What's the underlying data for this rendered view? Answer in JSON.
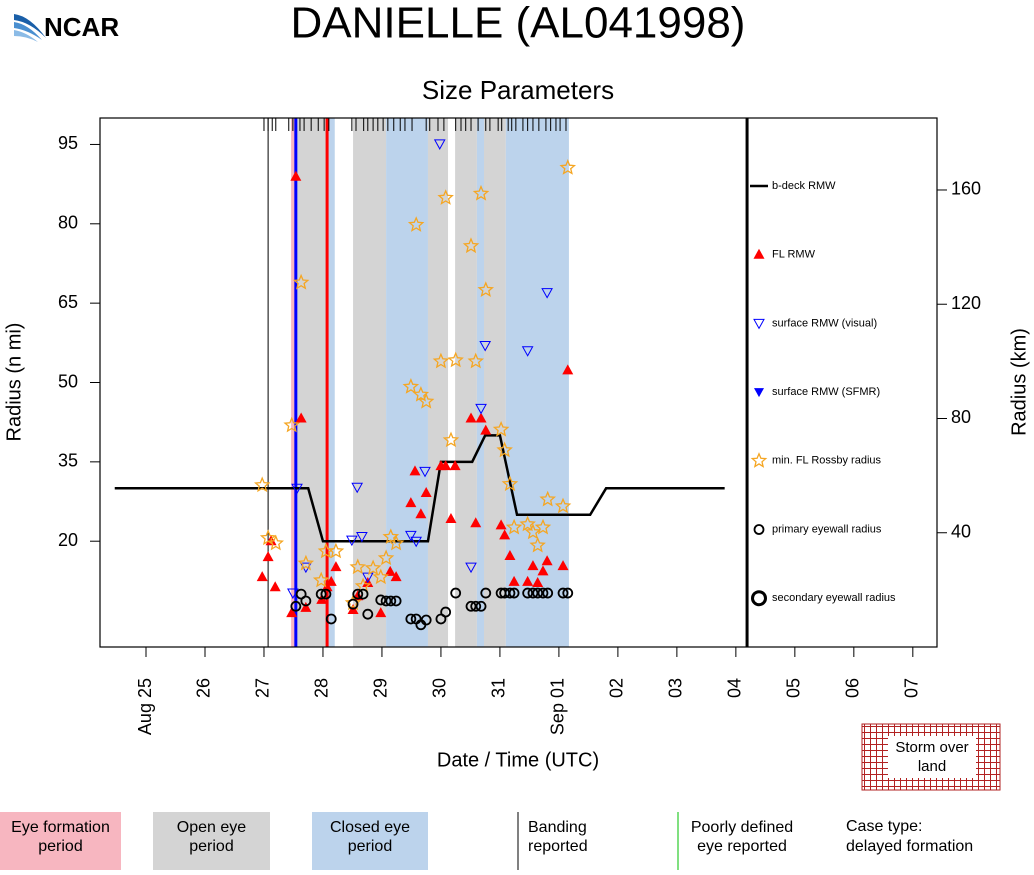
{
  "chart_data": {
    "type": "scatter",
    "logo": "NCAR",
    "title": "DANIELLE (AL041998)",
    "subtitle": "Size Parameters",
    "xlabel": "Date / Time (UTC)",
    "ylabel": "Radius (n mi)",
    "y2label": "Radius (km)",
    "xlim": [
      -0.78,
      13.41
    ],
    "xticks": [
      {
        "value": 0,
        "label": "Aug 25"
      },
      {
        "value": 1,
        "label": "26"
      },
      {
        "value": 2,
        "label": "27"
      },
      {
        "value": 3,
        "label": "28"
      },
      {
        "value": 4,
        "label": "29"
      },
      {
        "value": 5,
        "label": "30"
      },
      {
        "value": 6,
        "label": "31"
      },
      {
        "value": 7,
        "label": "Sep 01"
      },
      {
        "value": 8,
        "label": "02"
      },
      {
        "value": 9,
        "label": "03"
      },
      {
        "value": 10,
        "label": "04"
      },
      {
        "value": 11,
        "label": "05"
      },
      {
        "value": 12,
        "label": "06"
      },
      {
        "value": 13,
        "label": "07"
      }
    ],
    "ylim": [
      0,
      100
    ],
    "yticks": [
      20,
      35,
      50,
      65,
      80,
      95
    ],
    "y2lim": [
      0,
      185.2
    ],
    "y2ticks": [
      40,
      80,
      120,
      160
    ],
    "divider": 10.19,
    "fix_times": [
      2.0,
      2.07,
      2.14,
      2.2,
      2.42,
      2.49,
      2.61,
      2.68,
      2.8,
      2.92,
      3.02,
      3.1,
      3.49,
      3.56,
      3.69,
      3.76,
      3.85,
      3.93,
      4.02,
      4.1,
      4.2,
      4.31,
      4.39,
      4.51,
      4.75,
      4.81,
      4.95,
      5.05,
      5.25,
      5.34,
      5.42,
      5.51,
      5.63,
      5.76,
      5.83,
      5.97,
      6.03,
      6.14,
      6.2,
      6.27,
      6.39,
      6.47,
      6.56,
      6.66,
      6.78,
      6.86,
      6.95,
      7.02,
      7.12
    ],
    "shading": [
      {
        "label": [
          "Eye formation",
          "period"
        ],
        "color": "#f7b6c0",
        "spans": [
          [
            2.46,
            2.56
          ]
        ]
      },
      {
        "label": [
          "Open eye",
          "period"
        ],
        "color": "#d4d4d4",
        "spans": [
          [
            2.56,
            3.08
          ],
          [
            3.51,
            4.07
          ],
          [
            4.78,
            5.12
          ],
          [
            5.24,
            5.61
          ],
          [
            5.73,
            6.1
          ]
        ]
      },
      {
        "label": [
          "Closed eye",
          "period"
        ],
        "color": "#bcd3ec",
        "spans": [
          [
            3.08,
            3.2
          ],
          [
            4.07,
            4.78
          ],
          [
            5.61,
            5.73
          ],
          [
            6.1,
            7.17
          ]
        ]
      }
    ],
    "banding": {
      "label": [
        "Banding",
        "reported"
      ],
      "color": "#000000",
      "x": [
        2.07
      ]
    },
    "poorly_defined": {
      "label": [
        "Poorly defined",
        "eye reported"
      ],
      "color": "#00c000",
      "x": []
    },
    "case_type": [
      "Case type:",
      "delayed formation"
    ],
    "land_label": [
      "Storm over",
      "land"
    ],
    "vlines": [
      {
        "x": 2.54,
        "color": "#0000ff"
      },
      {
        "x": 3.07,
        "color": "#ff0000"
      }
    ],
    "series": [
      {
        "name": "b-deck RMW",
        "marker": "line",
        "color": "#000000",
        "x": [
          -0.53,
          2.75,
          3.0,
          4.78,
          5.0,
          5.53,
          5.75,
          6.0,
          6.29,
          7.53,
          7.8,
          9.81
        ],
        "values": [
          30,
          30,
          20,
          20,
          35,
          35,
          40,
          40,
          25,
          25,
          30,
          30
        ]
      },
      {
        "name": "FL RMW",
        "marker": "triangle-up",
        "color": "#ff0000",
        "x": [
          1.97,
          2.07,
          2.12,
          2.19,
          2.47,
          2.54,
          2.63,
          2.71,
          2.98,
          3.07,
          3.14,
          3.22,
          3.51,
          3.59,
          3.76,
          3.98,
          4.14,
          4.24,
          4.49,
          4.56,
          4.66,
          4.75,
          5.0,
          5.08,
          5.17,
          5.24,
          5.51,
          5.59,
          5.68,
          5.76,
          6.02,
          6.08,
          6.17,
          6.24,
          6.47,
          6.56,
          6.64,
          6.73,
          6.8,
          7.07,
          7.15
        ],
        "values": [
          13.2,
          17,
          20,
          11.3,
          6.4,
          88.9,
          43.2,
          7.4,
          8.9,
          11.3,
          12.3,
          15.1,
          7,
          9.6,
          12.1,
          6.4,
          14.2,
          13.2,
          27.2,
          33.2,
          25.1,
          29.1,
          34.2,
          34.2,
          24.2,
          34.2,
          43.2,
          23.4,
          43.2,
          40.9,
          23,
          21.1,
          17.2,
          12.3,
          12.3,
          15.3,
          12.1,
          14.3,
          16.2,
          15.3,
          52.3
        ]
      },
      {
        "name": "surface RMW (visual)",
        "marker": "triangle-down-open",
        "color": "#0000ff",
        "x": [
          2.49,
          2.56,
          2.71,
          3.49,
          3.58,
          3.66,
          3.76,
          4.49,
          4.58,
          4.73,
          4.98,
          5.51,
          5.68,
          5.75,
          6.47,
          6.8
        ],
        "values": [
          10.2,
          30,
          15.1,
          20.2,
          30.2,
          20.9,
          13.2,
          21.1,
          20,
          33.2,
          95.1,
          15.1,
          45.1,
          57,
          56,
          67
        ]
      },
      {
        "name": "surface RMW (SFMR)",
        "marker": "triangle-down",
        "color": "#0000ff",
        "x": [],
        "values": []
      },
      {
        "name": "min. FL Rossby radius",
        "marker": "star-open",
        "color": "#f5a623",
        "x": [
          1.97,
          2.07,
          2.2,
          2.47,
          2.63,
          2.71,
          2.97,
          3.05,
          3.22,
          3.51,
          3.59,
          3.68,
          3.85,
          3.98,
          4.07,
          4.15,
          4.24,
          4.49,
          4.58,
          4.66,
          4.75,
          5.0,
          5.08,
          5.17,
          5.25,
          5.51,
          5.59,
          5.68,
          5.76,
          6.02,
          6.08,
          6.17,
          6.24,
          6.47,
          6.56,
          6.64,
          6.73,
          6.81,
          7.07,
          7.15
        ],
        "values": [
          30.6,
          20.6,
          19.6,
          41.9,
          68.9,
          15.8,
          12.6,
          18.1,
          18.1,
          8.3,
          15.1,
          11.5,
          14.9,
          13.2,
          16.8,
          20.8,
          19.6,
          49.2,
          79.8,
          47.7,
          46.4,
          54,
          84.9,
          39.1,
          54.2,
          75.8,
          54,
          85.7,
          67.5,
          41.1,
          37.2,
          30.8,
          22.6,
          23.2,
          21.7,
          19.2,
          22.6,
          27.9,
          26.6,
          90.6
        ]
      },
      {
        "name": "primary eyewall radius",
        "marker": "circle-open",
        "color": "#000000",
        "x": [
          2.54,
          2.63,
          2.71,
          2.97,
          3.05,
          3.14,
          3.51,
          3.59,
          3.68,
          3.76,
          3.98,
          4.07,
          4.15,
          4.24,
          4.49,
          4.58,
          4.66,
          4.75,
          5.0,
          5.08,
          5.25,
          5.51,
          5.59,
          5.68,
          5.76,
          6.02,
          6.08,
          6.17,
          6.24,
          6.47,
          6.56,
          6.64,
          6.73,
          6.81,
          7.07,
          7.15
        ],
        "values": [
          7.7,
          10,
          8.7,
          10,
          10,
          5.3,
          8.1,
          10,
          10,
          6.2,
          8.9,
          8.7,
          8.7,
          8.7,
          5.3,
          5.3,
          4.2,
          5.1,
          5.3,
          6.6,
          10.2,
          7.7,
          7.7,
          7.7,
          10.2,
          10.2,
          10.2,
          10.2,
          10.2,
          10.2,
          10.2,
          10.2,
          10.2,
          10.2,
          10.2,
          10.2
        ]
      },
      {
        "name": "secondary eyewall radius",
        "marker": "circle-open-large",
        "color": "#000000",
        "x": [],
        "values": []
      }
    ]
  }
}
